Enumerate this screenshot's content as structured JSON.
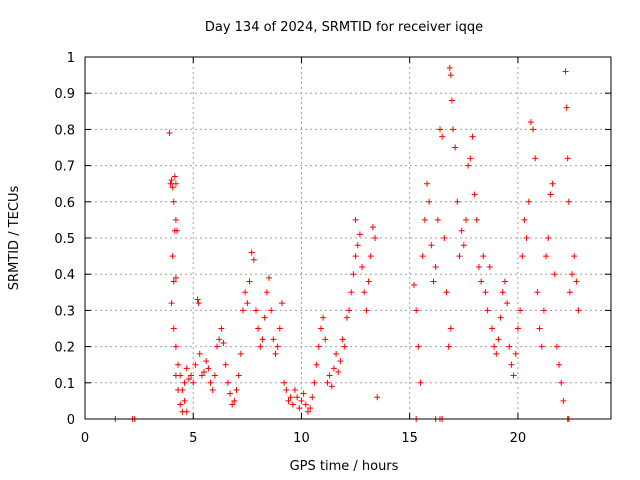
{
  "chart_data": {
    "type": "scatter",
    "title": "Day 134 of 2024, SRMTID for receiver iqqe",
    "xlabel": "GPS time / hours",
    "ylabel": "SRMTID / TECUs",
    "xlim": [
      0,
      24.3
    ],
    "ylim": [
      0,
      1
    ],
    "x_ticks": [
      0,
      5,
      10,
      15,
      20
    ],
    "x_tick_labels": [
      "0",
      "5",
      "10",
      "15",
      "20"
    ],
    "y_ticks": [
      0,
      0.1,
      0.2,
      0.3,
      0.4,
      0.5,
      0.6,
      0.7,
      0.8,
      0.9,
      1
    ],
    "y_tick_labels": [
      "0",
      "0.1",
      "0.2",
      "0.3",
      "0.4",
      "0.5",
      "0.6",
      "0.7",
      "0.8",
      "0.9",
      "1"
    ],
    "grid": true,
    "marker": "+",
    "color": "#ff0000",
    "series": [
      {
        "name": "SRMTID",
        "points": [
          [
            1.4,
            0.0
          ],
          [
            2.2,
            0.0
          ],
          [
            2.3,
            0.0
          ],
          [
            3.9,
            0.79
          ],
          [
            3.95,
            0.65
          ],
          [
            4.0,
            0.66
          ],
          [
            4.05,
            0.64
          ],
          [
            4.1,
            0.6
          ],
          [
            4.15,
            0.52
          ],
          [
            4.2,
            0.55
          ],
          [
            4.05,
            0.45
          ],
          [
            4.1,
            0.38
          ],
          [
            4.2,
            0.39
          ],
          [
            4.25,
            0.52
          ],
          [
            4.15,
            0.67
          ],
          [
            4.2,
            0.65
          ],
          [
            4.0,
            0.32
          ],
          [
            4.1,
            0.25
          ],
          [
            4.2,
            0.2
          ],
          [
            4.3,
            0.15
          ],
          [
            4.4,
            0.12
          ],
          [
            4.5,
            0.08
          ],
          [
            4.6,
            0.05
          ],
          [
            4.7,
            0.02
          ],
          [
            4.2,
            0.12
          ],
          [
            4.3,
            0.08
          ],
          [
            4.4,
            0.04
          ],
          [
            4.5,
            0.02
          ],
          [
            4.6,
            0.1
          ],
          [
            4.7,
            0.14
          ],
          [
            4.8,
            0.11
          ],
          [
            4.9,
            0.12
          ],
          [
            5.0,
            0.1
          ],
          [
            5.1,
            0.15
          ],
          [
            5.2,
            0.33
          ],
          [
            5.25,
            0.32
          ],
          [
            5.3,
            0.18
          ],
          [
            5.4,
            0.12
          ],
          [
            5.5,
            0.13
          ],
          [
            5.6,
            0.16
          ],
          [
            5.7,
            0.14
          ],
          [
            5.8,
            0.1
          ],
          [
            5.9,
            0.08
          ],
          [
            6.0,
            0.12
          ],
          [
            6.1,
            0.2
          ],
          [
            6.2,
            0.22
          ],
          [
            6.3,
            0.25
          ],
          [
            6.4,
            0.21
          ],
          [
            6.5,
            0.15
          ],
          [
            6.6,
            0.1
          ],
          [
            6.7,
            0.07
          ],
          [
            6.8,
            0.04
          ],
          [
            6.9,
            0.05
          ],
          [
            7.0,
            0.08
          ],
          [
            7.1,
            0.12
          ],
          [
            7.2,
            0.18
          ],
          [
            7.3,
            0.3
          ],
          [
            7.4,
            0.35
          ],
          [
            7.5,
            0.32
          ],
          [
            7.6,
            0.38
          ],
          [
            7.7,
            0.46
          ],
          [
            7.8,
            0.44
          ],
          [
            7.9,
            0.3
          ],
          [
            8.0,
            0.25
          ],
          [
            8.1,
            0.2
          ],
          [
            8.2,
            0.22
          ],
          [
            8.3,
            0.28
          ],
          [
            8.4,
            0.35
          ],
          [
            8.5,
            0.39
          ],
          [
            8.6,
            0.3
          ],
          [
            8.7,
            0.22
          ],
          [
            8.8,
            0.18
          ],
          [
            8.9,
            0.2
          ],
          [
            9.0,
            0.25
          ],
          [
            9.1,
            0.32
          ],
          [
            9.2,
            0.1
          ],
          [
            9.3,
            0.08
          ],
          [
            9.4,
            0.05
          ],
          [
            9.5,
            0.06
          ],
          [
            9.6,
            0.04
          ],
          [
            9.7,
            0.08
          ],
          [
            9.8,
            0.06
          ],
          [
            9.9,
            0.03
          ],
          [
            10.0,
            0.05
          ],
          [
            10.1,
            0.07
          ],
          [
            10.2,
            0.04
          ],
          [
            10.3,
            0.02
          ],
          [
            10.4,
            0.03
          ],
          [
            10.5,
            0.06
          ],
          [
            10.6,
            0.1
          ],
          [
            10.7,
            0.15
          ],
          [
            10.8,
            0.2
          ],
          [
            10.9,
            0.25
          ],
          [
            11.0,
            0.28
          ],
          [
            11.1,
            0.22
          ],
          [
            11.2,
            0.1
          ],
          [
            11.3,
            0.12
          ],
          [
            11.4,
            0.09
          ],
          [
            11.5,
            0.14
          ],
          [
            11.6,
            0.18
          ],
          [
            11.7,
            0.13
          ],
          [
            11.8,
            0.16
          ],
          [
            11.9,
            0.22
          ],
          [
            12.0,
            0.2
          ],
          [
            12.1,
            0.28
          ],
          [
            12.2,
            0.3
          ],
          [
            12.3,
            0.35
          ],
          [
            12.4,
            0.4
          ],
          [
            12.5,
            0.45
          ],
          [
            12.6,
            0.48
          ],
          [
            12.7,
            0.51
          ],
          [
            12.8,
            0.42
          ],
          [
            12.9,
            0.35
          ],
          [
            13.0,
            0.3
          ],
          [
            13.1,
            0.38
          ],
          [
            13.2,
            0.45
          ],
          [
            13.3,
            0.53
          ],
          [
            13.4,
            0.5
          ],
          [
            13.5,
            0.06
          ],
          [
            12.5,
            0.55
          ],
          [
            15.2,
            0.37
          ],
          [
            15.3,
            0.3
          ],
          [
            15.4,
            0.2
          ],
          [
            15.5,
            0.1
          ],
          [
            15.6,
            0.45
          ],
          [
            15.7,
            0.55
          ],
          [
            15.8,
            0.65
          ],
          [
            15.9,
            0.6
          ],
          [
            16.0,
            0.48
          ],
          [
            16.1,
            0.38
          ],
          [
            16.2,
            0.42
          ],
          [
            16.3,
            0.55
          ],
          [
            16.4,
            0.8
          ],
          [
            16.5,
            0.78
          ],
          [
            16.6,
            0.5
          ],
          [
            16.7,
            0.35
          ],
          [
            16.8,
            0.2
          ],
          [
            16.9,
            0.25
          ],
          [
            16.85,
            0.97
          ],
          [
            16.9,
            0.95
          ],
          [
            16.95,
            0.88
          ],
          [
            17.0,
            0.8
          ],
          [
            17.1,
            0.75
          ],
          [
            17.2,
            0.6
          ],
          [
            17.3,
            0.45
          ],
          [
            17.4,
            0.52
          ],
          [
            17.5,
            0.48
          ],
          [
            17.6,
            0.55
          ],
          [
            17.7,
            0.7
          ],
          [
            17.8,
            0.72
          ],
          [
            17.9,
            0.78
          ],
          [
            18.0,
            0.62
          ],
          [
            18.1,
            0.55
          ],
          [
            18.2,
            0.42
          ],
          [
            18.3,
            0.38
          ],
          [
            18.4,
            0.45
          ],
          [
            18.5,
            0.35
          ],
          [
            18.6,
            0.3
          ],
          [
            18.7,
            0.42
          ],
          [
            18.8,
            0.25
          ],
          [
            18.9,
            0.2
          ],
          [
            19.0,
            0.18
          ],
          [
            19.1,
            0.22
          ],
          [
            19.2,
            0.28
          ],
          [
            19.3,
            0.35
          ],
          [
            19.4,
            0.38
          ],
          [
            19.5,
            0.32
          ],
          [
            19.6,
            0.2
          ],
          [
            19.7,
            0.15
          ],
          [
            19.8,
            0.12
          ],
          [
            19.9,
            0.18
          ],
          [
            20.0,
            0.25
          ],
          [
            20.1,
            0.3
          ],
          [
            20.2,
            0.45
          ],
          [
            20.3,
            0.55
          ],
          [
            20.4,
            0.5
          ],
          [
            20.5,
            0.6
          ],
          [
            20.6,
            0.82
          ],
          [
            20.7,
            0.8
          ],
          [
            20.8,
            0.72
          ],
          [
            20.9,
            0.35
          ],
          [
            21.0,
            0.25
          ],
          [
            21.1,
            0.2
          ],
          [
            21.2,
            0.3
          ],
          [
            21.3,
            0.45
          ],
          [
            21.4,
            0.5
          ],
          [
            21.5,
            0.62
          ],
          [
            21.6,
            0.65
          ],
          [
            21.7,
            0.4
          ],
          [
            21.8,
            0.2
          ],
          [
            21.9,
            0.15
          ],
          [
            22.0,
            0.1
          ],
          [
            22.1,
            0.05
          ],
          [
            22.2,
            0.96
          ],
          [
            22.25,
            0.86
          ],
          [
            22.3,
            0.72
          ],
          [
            22.35,
            0.6
          ],
          [
            22.4,
            0.35
          ],
          [
            22.5,
            0.4
          ],
          [
            22.6,
            0.45
          ],
          [
            22.7,
            0.38
          ],
          [
            22.8,
            0.3
          ],
          [
            15.3,
            0.0
          ],
          [
            16.2,
            0.0
          ],
          [
            16.4,
            0.0
          ],
          [
            16.5,
            0.0
          ],
          [
            22.3,
            0.0
          ],
          [
            22.35,
            0.0
          ]
        ]
      }
    ]
  }
}
